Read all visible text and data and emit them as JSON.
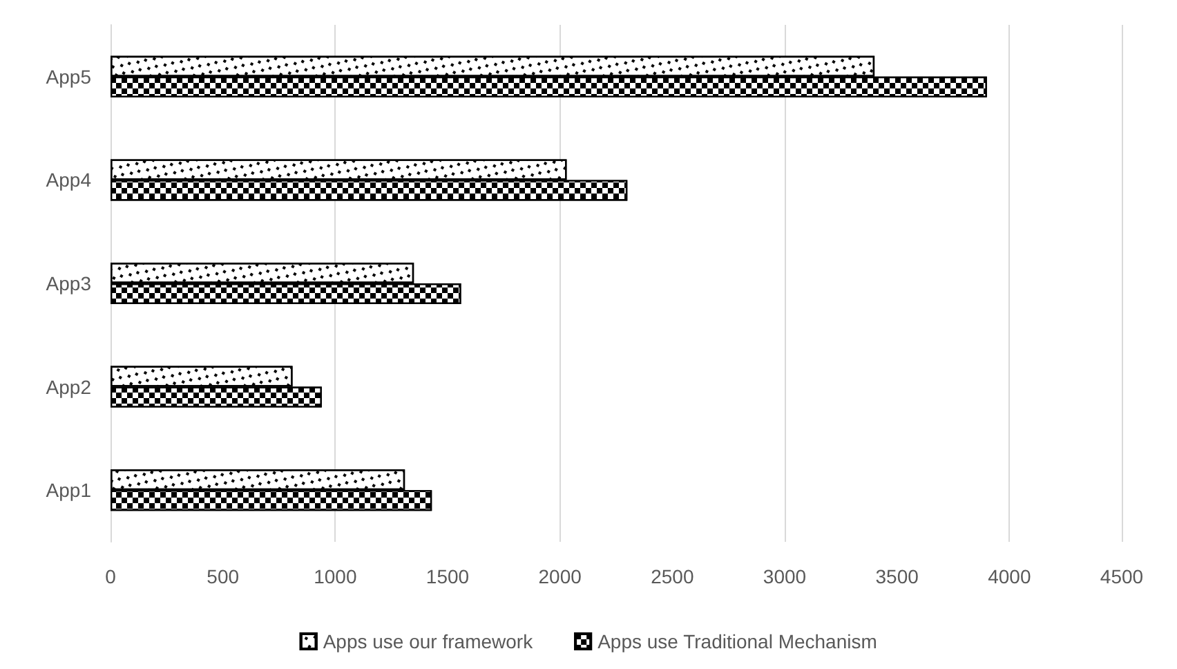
{
  "chart_data": {
    "type": "bar",
    "orientation": "horizontal",
    "categories": [
      "App5",
      "App4",
      "App3",
      "App2",
      "App1"
    ],
    "series": [
      {
        "name": "Apps use our framework",
        "color": "#ffffff",
        "values": [
          3400,
          2030,
          1350,
          810,
          1310
        ]
      },
      {
        "name": "Apps use Traditional Mechanism",
        "color": "#000000",
        "values": [
          3900,
          2300,
          1560,
          940,
          1430
        ]
      }
    ],
    "xlim": [
      0,
      4500
    ],
    "xticks": [
      0,
      500,
      1000,
      1500,
      2000,
      2500,
      3000,
      3500,
      4000,
      4500
    ],
    "grid": "x",
    "legend": "bottom"
  }
}
